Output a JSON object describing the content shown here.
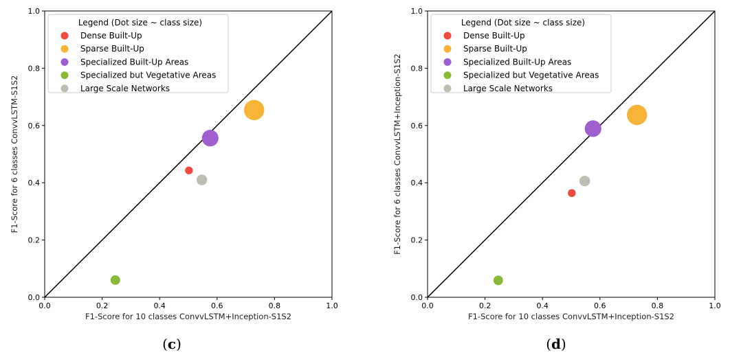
{
  "colors": {
    "dense": "#f0493e",
    "sparse": "#f8b439",
    "specialized": "#a05fcf",
    "vegetative": "#88ba36",
    "networks": "#bdbdb2"
  },
  "chart_data": [
    {
      "type": "scatter",
      "caption_open": "(",
      "caption_letter": "c",
      "caption_close": ")",
      "xlabel": "F1-Score for 10 classes ConvvLSTM+Inception-S1S2",
      "ylabel": "F1-Score for 6 classes ConvvLSTM-S1S2",
      "xlim": [
        0,
        1
      ],
      "ylim": [
        0,
        1
      ],
      "xticks": [
        "0.0",
        "0.2",
        "0.4",
        "0.6",
        "0.8",
        "1.0"
      ],
      "yticks": [
        "0.0",
        "0.2",
        "0.4",
        "0.6",
        "0.8",
        "1.0"
      ],
      "diagonal": true,
      "legend": {
        "title": "Legend (Dot size ~ class size)",
        "position": "top-left",
        "entries": [
          {
            "label": "Dense Built-Up",
            "color_key": "dense"
          },
          {
            "label": "Sparse Built-Up",
            "color_key": "sparse"
          },
          {
            "label": "Specialized Built-Up Areas",
            "color_key": "specialized"
          },
          {
            "label": "Specialized but Vegetative Areas",
            "color_key": "vegetative"
          },
          {
            "label": "Large Scale Networks",
            "color_key": "networks"
          }
        ]
      },
      "points": [
        {
          "name": "Dense Built-Up",
          "x": 0.502,
          "y": 0.443,
          "relative_size": 0.3,
          "color_key": "dense"
        },
        {
          "name": "Large Scale Networks",
          "x": 0.547,
          "y": 0.41,
          "relative_size": 0.55,
          "color_key": "networks"
        },
        {
          "name": "Specialized Built-Up Areas",
          "x": 0.576,
          "y": 0.556,
          "relative_size": 1.35,
          "color_key": "specialized"
        },
        {
          "name": "Sparse Built-Up",
          "x": 0.729,
          "y": 0.654,
          "relative_size": 2.0,
          "color_key": "sparse"
        },
        {
          "name": "Specialized but Vegetative Areas",
          "x": 0.246,
          "y": 0.06,
          "relative_size": 0.45,
          "color_key": "vegetative"
        }
      ]
    },
    {
      "type": "scatter",
      "caption_open": "(",
      "caption_letter": "d",
      "caption_close": ")",
      "xlabel": "F1-Score for 10 classes ConvvLSTM+Inception-S1S2",
      "ylabel": "F1-Score for 6 classes ConvvLSTM+Inception-S1S2",
      "xlim": [
        0,
        1
      ],
      "ylim": [
        0,
        1
      ],
      "xticks": [
        "0.0",
        "0.2",
        "0.4",
        "0.6",
        "0.8",
        "1.0"
      ],
      "yticks": [
        "0.0",
        "0.2",
        "0.4",
        "0.6",
        "0.8",
        "1.0"
      ],
      "diagonal": true,
      "legend": {
        "title": "Legend (Dot size ~ class size)",
        "position": "top-left",
        "entries": [
          {
            "label": "Dense Built-Up",
            "color_key": "dense"
          },
          {
            "label": "Sparse Built-Up",
            "color_key": "sparse"
          },
          {
            "label": "Specialized Built-Up Areas",
            "color_key": "specialized"
          },
          {
            "label": "Specialized but Vegetative Areas",
            "color_key": "vegetative"
          },
          {
            "label": "Large Scale Networks",
            "color_key": "networks"
          }
        ]
      },
      "points": [
        {
          "name": "Dense Built-Up",
          "x": 0.502,
          "y": 0.364,
          "relative_size": 0.3,
          "color_key": "dense"
        },
        {
          "name": "Large Scale Networks",
          "x": 0.547,
          "y": 0.406,
          "relative_size": 0.55,
          "color_key": "networks"
        },
        {
          "name": "Specialized Built-Up Areas",
          "x": 0.576,
          "y": 0.589,
          "relative_size": 1.35,
          "color_key": "specialized"
        },
        {
          "name": "Sparse Built-Up",
          "x": 0.729,
          "y": 0.637,
          "relative_size": 2.0,
          "color_key": "sparse"
        },
        {
          "name": "Specialized but Vegetative Areas",
          "x": 0.246,
          "y": 0.059,
          "relative_size": 0.45,
          "color_key": "vegetative"
        }
      ]
    }
  ]
}
